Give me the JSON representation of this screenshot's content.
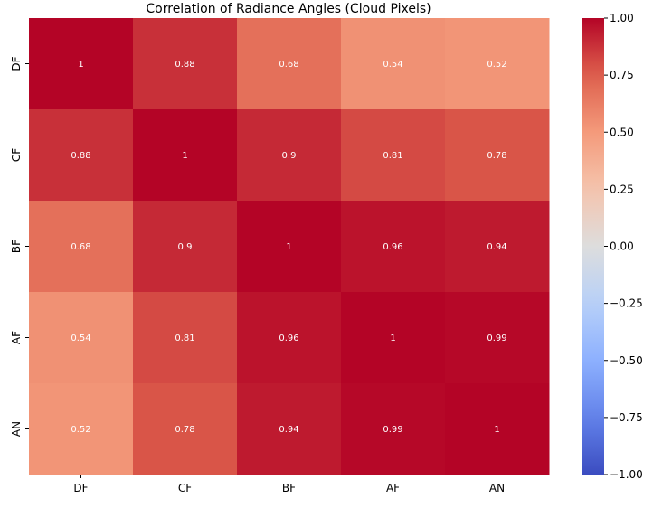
{
  "chart_data": {
    "type": "heatmap",
    "title": "Correlation of Radiance Angles (Cloud Pixels)",
    "xlabel": "",
    "ylabel": "",
    "x_categories": [
      "DF",
      "CF",
      "BF",
      "AF",
      "AN"
    ],
    "y_categories": [
      "DF",
      "CF",
      "BF",
      "AF",
      "AN"
    ],
    "values": [
      [
        1,
        0.88,
        0.68,
        0.54,
        0.52
      ],
      [
        0.88,
        1,
        0.9,
        0.81,
        0.78
      ],
      [
        0.68,
        0.9,
        1,
        0.96,
        0.94
      ],
      [
        0.54,
        0.81,
        0.96,
        1,
        0.99
      ],
      [
        0.52,
        0.78,
        0.94,
        0.99,
        1
      ]
    ],
    "annotations": [
      [
        "1",
        "0.88",
        "0.68",
        "0.54",
        "0.52"
      ],
      [
        "0.88",
        "1",
        "0.9",
        "0.81",
        "0.78"
      ],
      [
        "0.68",
        "0.9",
        "1",
        "0.96",
        "0.94"
      ],
      [
        "0.54",
        "0.81",
        "0.96",
        "1",
        "0.99"
      ],
      [
        "0.52",
        "0.78",
        "0.94",
        "0.99",
        "1"
      ]
    ],
    "colormap": "coolwarm",
    "vmin": -1.0,
    "vmax": 1.0,
    "colorbar_ticks": [
      1.0,
      0.75,
      0.5,
      0.25,
      0.0,
      -0.25,
      -0.5,
      -0.75,
      -1.0
    ],
    "colorbar_tick_labels": [
      "1.00",
      "0.75",
      "0.50",
      "0.25",
      "0.00",
      "−0.25",
      "−0.50",
      "−0.75",
      "−1.00"
    ],
    "grid": false,
    "legend": "colorbar-right"
  }
}
